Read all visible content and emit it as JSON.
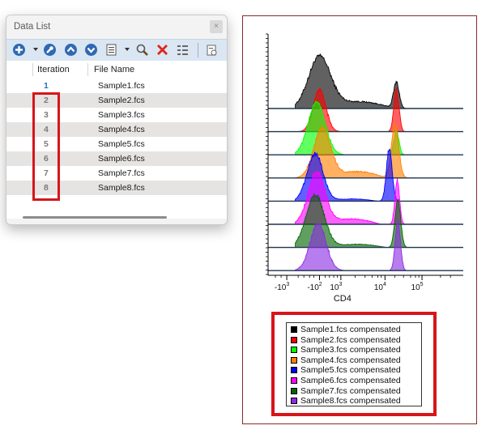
{
  "window": {
    "title": "Data List",
    "close_glyph": "×",
    "toolbar": [
      "add-icon",
      "wrench-icon",
      "move-up-icon",
      "move-down-icon",
      "page-icon",
      "search-icon",
      "delete-icon",
      "list-settings-icon",
      "keyword-icon"
    ],
    "columns": {
      "iteration": "Iteration",
      "file_name": "File Name"
    },
    "rows": [
      {
        "iteration": "1",
        "file": "Sample1.fcs"
      },
      {
        "iteration": "2",
        "file": "Sample2.fcs"
      },
      {
        "iteration": "3",
        "file": "Sample3.fcs"
      },
      {
        "iteration": "4",
        "file": "Sample4.fcs"
      },
      {
        "iteration": "5",
        "file": "Sample5.fcs"
      },
      {
        "iteration": "6",
        "file": "Sample6.fcs"
      },
      {
        "iteration": "7",
        "file": "Sample7.fcs"
      },
      {
        "iteration": "8",
        "file": "Sample8.fcs"
      }
    ]
  },
  "chart_data": {
    "type": "area",
    "xlabel": "CD4",
    "x_scale": "biexponential",
    "x_ticks": [
      {
        "base": "-10",
        "exp": "3"
      },
      {
        "base": "-10",
        "exp": "2"
      },
      {
        "base": "10",
        "exp": "3"
      },
      {
        "base": "10",
        "exp": "4"
      },
      {
        "base": "10",
        "exp": "5"
      }
    ],
    "layout": "staggered overlay, no y axis labels",
    "series": [
      {
        "name": "Sample1.fcs compensated",
        "color": "#000000"
      },
      {
        "name": "Sample2.fcs compensated",
        "color": "#ff0000"
      },
      {
        "name": "Sample3.fcs compensated",
        "color": "#00ff00"
      },
      {
        "name": "Sample4.fcs compensated",
        "color": "#ff7f00"
      },
      {
        "name": "Sample5.fcs compensated",
        "color": "#0000ff"
      },
      {
        "name": "Sample6.fcs compensated",
        "color": "#ff00ff"
      },
      {
        "name": "Sample7.fcs compensated",
        "color": "#006400"
      },
      {
        "name": "Sample8.fcs compensated",
        "color": "#8a2be2"
      }
    ],
    "highlight_color": "#d7151b"
  }
}
